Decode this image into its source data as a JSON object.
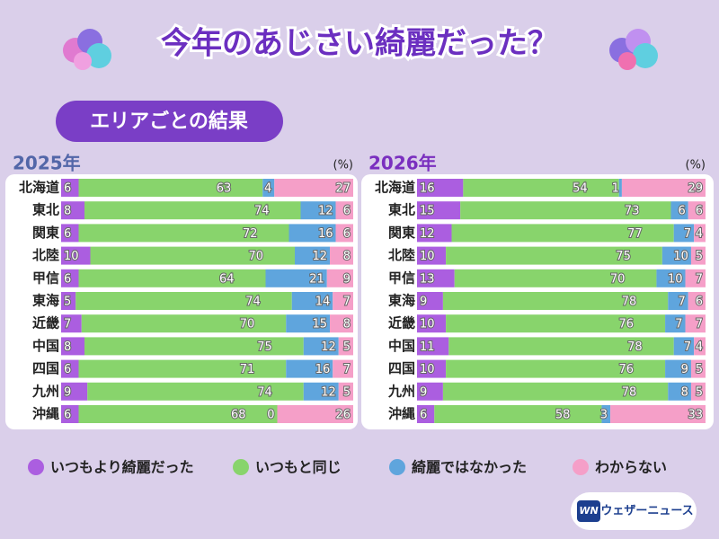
{
  "header": {
    "title": "今年のあじさい綺麗だった？"
  },
  "section_label": "エリアごとの結果",
  "chart_data": [
    {
      "type": "bar",
      "orientation": "horizontal",
      "stacked": true,
      "title": "2025年",
      "unit": "(%)",
      "xlim": [
        0,
        100
      ],
      "categories": [
        "北海道",
        "東北",
        "関東",
        "北陸",
        "甲信",
        "東海",
        "近畿",
        "中国",
        "四国",
        "九州",
        "沖縄"
      ],
      "series": [
        {
          "name": "いつもより綺麗だった",
          "color": "#ab5ee0",
          "values": [
            6,
            8,
            6,
            10,
            6,
            5,
            7,
            8,
            6,
            9,
            6
          ]
        },
        {
          "name": "いつもと同じ",
          "color": "#88d46c",
          "values": [
            63,
            74,
            72,
            70,
            64,
            74,
            70,
            75,
            71,
            74,
            68
          ]
        },
        {
          "name": "綺麗ではなかった",
          "color": "#5fa5dd",
          "values": [
            4,
            12,
            16,
            12,
            21,
            14,
            15,
            12,
            16,
            12,
            0
          ]
        },
        {
          "name": "わからない",
          "color": "#f59fc8",
          "values": [
            27,
            6,
            6,
            8,
            9,
            7,
            8,
            5,
            7,
            5,
            26
          ]
        }
      ]
    },
    {
      "type": "bar",
      "orientation": "horizontal",
      "stacked": true,
      "title": "2026年",
      "unit": "(%)",
      "xlim": [
        0,
        100
      ],
      "categories": [
        "北海道",
        "東北",
        "関東",
        "北陸",
        "甲信",
        "東海",
        "近畿",
        "中国",
        "四国",
        "九州",
        "沖縄"
      ],
      "series": [
        {
          "name": "いつもより綺麗だった",
          "color": "#ab5ee0",
          "values": [
            16,
            15,
            12,
            10,
            13,
            9,
            10,
            11,
            10,
            9,
            6
          ]
        },
        {
          "name": "いつもと同じ",
          "color": "#88d46c",
          "values": [
            54,
            73,
            77,
            75,
            70,
            78,
            76,
            78,
            76,
            78,
            58
          ]
        },
        {
          "name": "綺麗ではなかった",
          "color": "#5fa5dd",
          "values": [
            1,
            6,
            7,
            10,
            10,
            7,
            7,
            7,
            9,
            8,
            3
          ]
        },
        {
          "name": "わからない",
          "color": "#f59fc8",
          "values": [
            29,
            6,
            4,
            5,
            7,
            6,
            7,
            4,
            5,
            5,
            33
          ]
        }
      ]
    }
  ],
  "brand": {
    "mark": "WN",
    "name": "ウェザーニュース"
  }
}
